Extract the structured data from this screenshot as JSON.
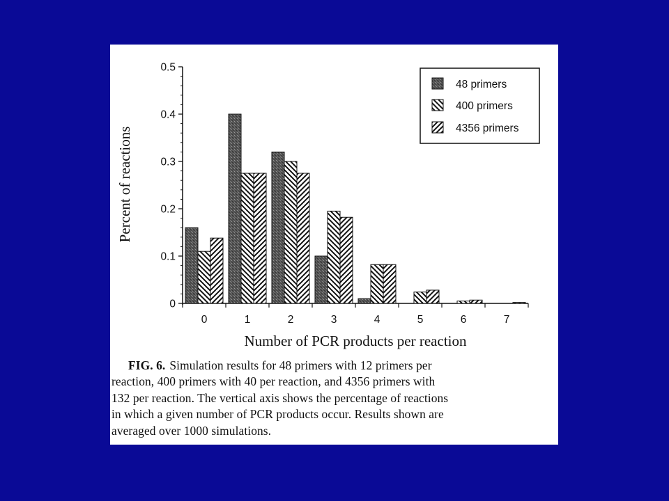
{
  "page": {
    "background": "#0a0a96"
  },
  "chart_data": {
    "type": "bar",
    "xlabel": "Number of PCR products per reaction",
    "ylabel": "Percent of reactions",
    "ylim": [
      0,
      0.5
    ],
    "yticks": [
      "0",
      "0.1",
      "0.2",
      "0.3",
      "0.4",
      "0.5"
    ],
    "categories": [
      "0",
      "1",
      "2",
      "3",
      "4",
      "5",
      "6",
      "7"
    ],
    "legend_position": "top-right",
    "series": [
      {
        "name": "48 primers",
        "fill": "dark-stipple",
        "values": [
          0.16,
          0.4,
          0.32,
          0.1,
          0.01,
          0.0,
          0.0,
          0.0
        ]
      },
      {
        "name": "400 primers",
        "fill": "diagonal-backslash",
        "values": [
          0.11,
          0.275,
          0.3,
          0.195,
          0.082,
          0.024,
          0.005,
          0.0
        ]
      },
      {
        "name": "4356 primers",
        "fill": "diagonal-slash",
        "values": [
          0.138,
          0.275,
          0.275,
          0.182,
          0.082,
          0.028,
          0.007,
          0.002
        ]
      }
    ]
  },
  "caption": {
    "label": "FIG. 6.",
    "lines": [
      "Simulation results for 48 primers with 12 primers per",
      "reaction, 400 primers with 40 per reaction, and 4356 primers with",
      "132 per reaction. The vertical axis shows the percentage of reactions",
      "in which a given number of PCR products occur. Results shown are",
      "averaged over 1000 simulations."
    ]
  }
}
